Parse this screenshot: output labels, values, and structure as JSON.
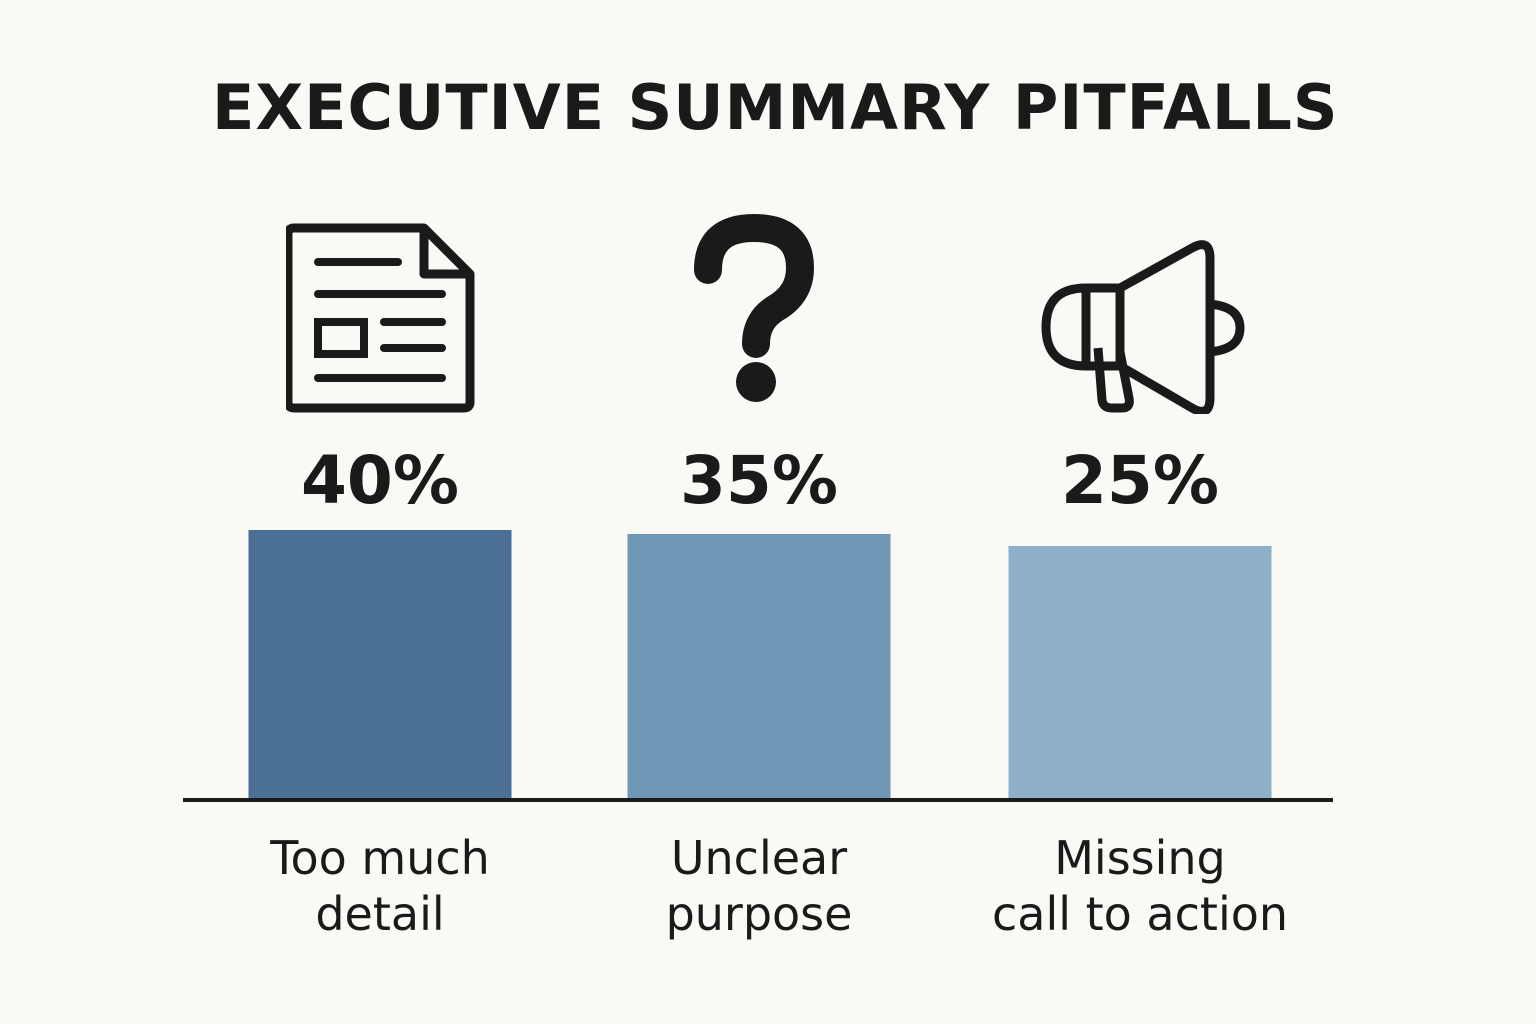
{
  "chart_data": {
    "type": "bar",
    "title": "EXECUTIVE SUMMARY PITFALLS",
    "categories": [
      "Too much\ndetail",
      "Unclear\npurpose",
      "Missing\ncall to action"
    ],
    "values": [
      40,
      35,
      25
    ],
    "value_labels": [
      "40%",
      "35%",
      "25%"
    ],
    "icons": [
      "document-icon",
      "question-mark-icon",
      "megaphone-icon"
    ],
    "colors": [
      "#4a7095",
      "#7097b6",
      "#8eb0c8"
    ],
    "grid": false,
    "legend": "none"
  }
}
